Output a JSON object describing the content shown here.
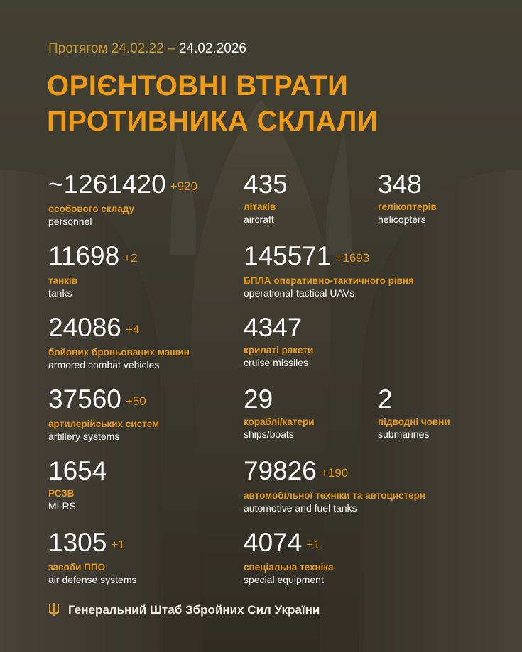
{
  "header": {
    "period_prefix": "Протягом 24.02.22 –",
    "period_end": "24.02.2026",
    "title_line1": "ОРІЄНТОВНІ ВТРАТИ",
    "title_line2": "ПРОТИВНИКА СКЛАЛИ"
  },
  "stats": [
    {
      "value": "~1261420",
      "delta": "+920",
      "ua": "особового складу",
      "en": "personnel"
    },
    {
      "value": "435",
      "delta": "",
      "ua": "літаків",
      "en": "aircraft"
    },
    {
      "value": "348",
      "delta": "",
      "ua": "гелікоптерів",
      "en": "helicopters"
    },
    {
      "value": "11698",
      "delta": "+2",
      "ua": "танків",
      "en": "tanks"
    },
    {
      "value": "145571",
      "delta": "+1693",
      "ua": "БПЛА оперативно-тактичного рівня",
      "en": "operational-tactical UAVs"
    },
    {
      "value": "24086",
      "delta": "+4",
      "ua": "бойових броньованих машин",
      "en": "armored combat vehicles"
    },
    {
      "value": "4347",
      "delta": "",
      "ua": "крилаті ракети",
      "en": "cruise missiles"
    },
    {
      "value": "37560",
      "delta": "+50",
      "ua": "артилерійських систем",
      "en": "artillery systems"
    },
    {
      "value": "29",
      "delta": "",
      "ua": "кораблі/катери",
      "en": "ships/boats"
    },
    {
      "value": "2",
      "delta": "",
      "ua": "підводні човни",
      "en": "submarines"
    },
    {
      "value": "1654",
      "delta": "",
      "ua": "РСЗВ",
      "en": "MLRS"
    },
    {
      "value": "79826",
      "delta": "+190",
      "ua": "автомобільної техніки та автоцистерн",
      "en": "automotive and fuel tanks"
    },
    {
      "value": "1305",
      "delta": "+1",
      "ua": "засоби ППО",
      "en": "air defense systems"
    },
    {
      "value": "4074",
      "delta": "+1",
      "ua": "спеціальна техніка",
      "en": "special equipment"
    }
  ],
  "footer": {
    "text": "Генеральний Штаб Збройних Сил України",
    "icon": "trident-icon"
  },
  "colors": {
    "accent": "#f09b15",
    "background": "#3b382d",
    "text": "#ffffff"
  }
}
